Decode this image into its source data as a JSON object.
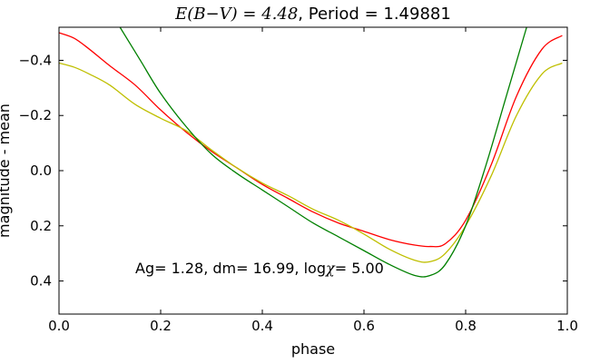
{
  "chart_data": {
    "type": "line",
    "title_math": "E(B−V) = 4.48",
    "title_rest": ", Period = 1.49881",
    "xlabel": "phase",
    "ylabel": "magnitude - mean",
    "xlim": [
      0.0,
      1.0
    ],
    "ylim": [
      0.52,
      -0.52
    ],
    "y_inverted": true,
    "x_ticks": [
      "0.0",
      "0.2",
      "0.4",
      "0.6",
      "0.8",
      "1.0"
    ],
    "y_ticks": [
      "−0.4",
      "−0.2",
      "0.0",
      "0.2",
      "0.4"
    ],
    "x_tick_values": [
      0.0,
      0.2,
      0.4,
      0.6,
      0.8,
      1.0
    ],
    "y_tick_values": [
      -0.4,
      -0.2,
      0.0,
      0.2,
      0.4
    ],
    "grid": false,
    "annotation": {
      "text_before": "Ag= 1.28, dm=  16.99, log",
      "chi": "χ",
      "text_after": "=  5.00",
      "anchor": [
        0.15,
        0.355
      ]
    },
    "series": [
      {
        "color": "#ff0000",
        "x": [
          0.0,
          0.03,
          0.06,
          0.1,
          0.15,
          0.2,
          0.25,
          0.3,
          0.35,
          0.4,
          0.45,
          0.5,
          0.55,
          0.6,
          0.65,
          0.7,
          0.73,
          0.76,
          0.8,
          0.85,
          0.9,
          0.95,
          0.99
        ],
        "y": [
          -0.5,
          -0.48,
          -0.44,
          -0.38,
          -0.31,
          -0.22,
          -0.14,
          -0.07,
          -0.01,
          0.05,
          0.1,
          0.15,
          0.19,
          0.22,
          0.25,
          0.27,
          0.275,
          0.265,
          0.18,
          -0.02,
          -0.27,
          -0.44,
          -0.49
        ]
      },
      {
        "color": "#bfbf00",
        "x": [
          0.0,
          0.03,
          0.06,
          0.1,
          0.15,
          0.2,
          0.25,
          0.3,
          0.35,
          0.4,
          0.45,
          0.5,
          0.55,
          0.6,
          0.65,
          0.7,
          0.73,
          0.76,
          0.8,
          0.85,
          0.9,
          0.95,
          0.99
        ],
        "y": [
          -0.39,
          -0.375,
          -0.35,
          -0.31,
          -0.24,
          -0.19,
          -0.145,
          -0.075,
          -0.01,
          0.045,
          0.09,
          0.14,
          0.18,
          0.23,
          0.285,
          0.325,
          0.33,
          0.3,
          0.2,
          0.02,
          -0.2,
          -0.35,
          -0.39
        ]
      },
      {
        "color": "#008000",
        "x": [
          0.12,
          0.16,
          0.2,
          0.25,
          0.3,
          0.35,
          0.4,
          0.45,
          0.5,
          0.55,
          0.6,
          0.65,
          0.7,
          0.73,
          0.76,
          0.8,
          0.84,
          0.88,
          0.92
        ],
        "y": [
          -0.52,
          -0.4,
          -0.28,
          -0.16,
          -0.06,
          0.01,
          0.07,
          0.13,
          0.19,
          0.24,
          0.29,
          0.34,
          0.38,
          0.38,
          0.34,
          0.2,
          -0.02,
          -0.27,
          -0.52
        ]
      }
    ]
  }
}
